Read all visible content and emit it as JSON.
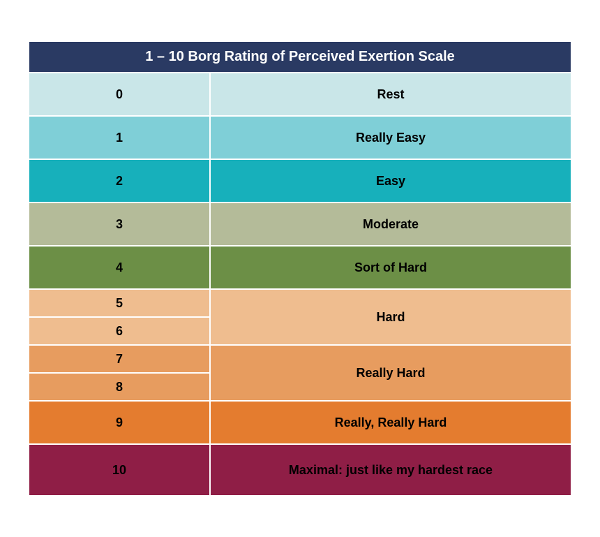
{
  "header": {
    "title": "1 – 10 Borg Rating of Perceived Exertion Scale",
    "bg_color": "#2a3a63",
    "text_color": "#ffffff",
    "fontsize": 20,
    "height": 40
  },
  "scale": {
    "text_color": "#000000",
    "num_col_width": 260,
    "border_color": "#ffffff",
    "border_width": 2,
    "fontsize_number": 18,
    "fontsize_label": 18,
    "rows": [
      {
        "numbers": [
          "0"
        ],
        "label": "Rest",
        "bg": "#c9e6e8",
        "height": 62
      },
      {
        "numbers": [
          "1"
        ],
        "label": "Really Easy",
        "bg": "#7fcfd7",
        "height": 62
      },
      {
        "numbers": [
          "2"
        ],
        "label": "Easy",
        "bg": "#17b0bb",
        "height": 62
      },
      {
        "numbers": [
          "3"
        ],
        "label": "Moderate",
        "bg": "#b4bb99",
        "height": 62
      },
      {
        "numbers": [
          "4"
        ],
        "label": "Sort of Hard",
        "bg": "#6c8f46",
        "height": 62
      },
      {
        "numbers": [
          "5",
          "6"
        ],
        "label": "Hard",
        "bg": "#efbd8f",
        "height": 40
      },
      {
        "numbers": [
          "7",
          "8"
        ],
        "label": "Really Hard",
        "bg": "#e79c5f",
        "height": 40
      },
      {
        "numbers": [
          "9"
        ],
        "label": "Really, Really Hard",
        "bg": "#e47c2f",
        "height": 62
      },
      {
        "numbers": [
          "10"
        ],
        "label": "Maximal: just like my hardest race",
        "bg": "#8f1e46",
        "height": 74
      }
    ]
  }
}
